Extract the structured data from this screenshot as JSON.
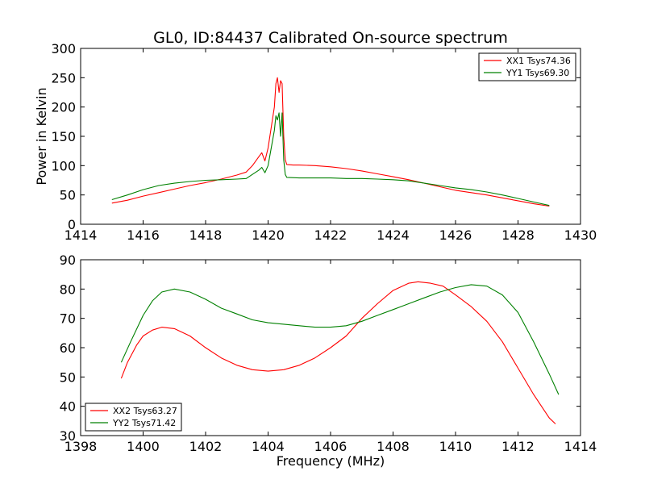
{
  "chart_data": [
    {
      "type": "line",
      "title": "GL0, ID:84437 Calibrated On-source spectrum",
      "xlabel": "",
      "ylabel": "Power in Kelvin",
      "xlim": [
        1414,
        1430
      ],
      "ylim": [
        0,
        300
      ],
      "xticks": [
        "1414",
        "1416",
        "1418",
        "1420",
        "1422",
        "1424",
        "1426",
        "1428",
        "1430"
      ],
      "yticks": [
        "0",
        "50",
        "100",
        "150",
        "200",
        "250",
        "300"
      ],
      "grid": false,
      "legend_position": "top-right",
      "series": [
        {
          "name": "XX1 Tsys74.36",
          "color": "#ff0000",
          "points": [
            [
              1415.0,
              36
            ],
            [
              1415.5,
              41
            ],
            [
              1416.0,
              48
            ],
            [
              1416.5,
              54
            ],
            [
              1417.0,
              60
            ],
            [
              1417.5,
              66
            ],
            [
              1418.0,
              71
            ],
            [
              1418.5,
              77
            ],
            [
              1419.0,
              84
            ],
            [
              1419.3,
              89
            ],
            [
              1419.5,
              100
            ],
            [
              1419.7,
              115
            ],
            [
              1419.8,
              122
            ],
            [
              1419.9,
              108
            ],
            [
              1420.0,
              130
            ],
            [
              1420.1,
              165
            ],
            [
              1420.2,
              200
            ],
            [
              1420.25,
              240
            ],
            [
              1420.3,
              250
            ],
            [
              1420.35,
              225
            ],
            [
              1420.4,
              245
            ],
            [
              1420.45,
              240
            ],
            [
              1420.5,
              150
            ],
            [
              1420.55,
              110
            ],
            [
              1420.6,
              102
            ],
            [
              1420.8,
              101
            ],
            [
              1421.0,
              101
            ],
            [
              1421.5,
              100
            ],
            [
              1422.0,
              98
            ],
            [
              1422.5,
              95
            ],
            [
              1423.0,
              91
            ],
            [
              1423.5,
              86
            ],
            [
              1424.0,
              81
            ],
            [
              1424.5,
              76
            ],
            [
              1425.0,
              70
            ],
            [
              1425.5,
              64
            ],
            [
              1426.0,
              58
            ],
            [
              1426.5,
              54
            ],
            [
              1427.0,
              50
            ],
            [
              1427.5,
              45
            ],
            [
              1428.0,
              40
            ],
            [
              1428.5,
              35
            ],
            [
              1429.0,
              31
            ]
          ]
        },
        {
          "name": "YY1 Tsys69.30",
          "color": "#008000",
          "points": [
            [
              1415.0,
              42
            ],
            [
              1415.5,
              50
            ],
            [
              1416.0,
              59
            ],
            [
              1416.5,
              66
            ],
            [
              1417.0,
              70
            ],
            [
              1417.5,
              73
            ],
            [
              1418.0,
              75
            ],
            [
              1418.5,
              76
            ],
            [
              1419.0,
              77
            ],
            [
              1419.3,
              78
            ],
            [
              1419.5,
              85
            ],
            [
              1419.7,
              92
            ],
            [
              1419.8,
              97
            ],
            [
              1419.9,
              88
            ],
            [
              1420.0,
              100
            ],
            [
              1420.1,
              130
            ],
            [
              1420.2,
              160
            ],
            [
              1420.25,
              185
            ],
            [
              1420.3,
              178
            ],
            [
              1420.35,
              190
            ],
            [
              1420.4,
              150
            ],
            [
              1420.45,
              190
            ],
            [
              1420.5,
              110
            ],
            [
              1420.55,
              85
            ],
            [
              1420.6,
              80
            ],
            [
              1421.0,
              79
            ],
            [
              1421.5,
              79
            ],
            [
              1422.0,
              79
            ],
            [
              1422.5,
              78
            ],
            [
              1423.0,
              78
            ],
            [
              1423.5,
              77
            ],
            [
              1424.0,
              76
            ],
            [
              1424.5,
              74
            ],
            [
              1425.0,
              70
            ],
            [
              1425.5,
              66
            ],
            [
              1426.0,
              62
            ],
            [
              1426.5,
              59
            ],
            [
              1427.0,
              55
            ],
            [
              1427.5,
              50
            ],
            [
              1428.0,
              44
            ],
            [
              1428.5,
              38
            ],
            [
              1429.0,
              32
            ]
          ]
        }
      ]
    },
    {
      "type": "line",
      "title": "",
      "xlabel": "Frequency (MHz)",
      "ylabel": "",
      "xlim": [
        1398,
        1414
      ],
      "ylim": [
        30,
        90
      ],
      "xticks": [
        "1398",
        "1400",
        "1402",
        "1404",
        "1406",
        "1408",
        "1410",
        "1412",
        "1414"
      ],
      "yticks": [
        "30",
        "40",
        "50",
        "60",
        "70",
        "80",
        "90"
      ],
      "grid": false,
      "legend_position": "bottom-left",
      "series": [
        {
          "name": "XX2 Tsys63.27",
          "color": "#ff0000",
          "points": [
            [
              1399.3,
              49.5
            ],
            [
              1399.5,
              55
            ],
            [
              1399.8,
              61
            ],
            [
              1400.0,
              64
            ],
            [
              1400.3,
              66
            ],
            [
              1400.6,
              67
            ],
            [
              1401.0,
              66.5
            ],
            [
              1401.5,
              64
            ],
            [
              1402.0,
              60
            ],
            [
              1402.5,
              56.5
            ],
            [
              1403.0,
              54
            ],
            [
              1403.5,
              52.5
            ],
            [
              1404.0,
              52
            ],
            [
              1404.5,
              52.5
            ],
            [
              1405.0,
              54
            ],
            [
              1405.5,
              56.5
            ],
            [
              1406.0,
              60
            ],
            [
              1406.5,
              64
            ],
            [
              1407.0,
              70
            ],
            [
              1407.5,
              75
            ],
            [
              1408.0,
              79.5
            ],
            [
              1408.5,
              82
            ],
            [
              1408.8,
              82.5
            ],
            [
              1409.2,
              82
            ],
            [
              1409.6,
              81
            ],
            [
              1410.0,
              78
            ],
            [
              1410.5,
              74
            ],
            [
              1411.0,
              69
            ],
            [
              1411.5,
              62
            ],
            [
              1412.0,
              53
            ],
            [
              1412.5,
              44
            ],
            [
              1413.0,
              36
            ],
            [
              1413.2,
              34
            ]
          ]
        },
        {
          "name": "YY2 Tsys71.42",
          "color": "#008000",
          "points": [
            [
              1399.3,
              55
            ],
            [
              1399.6,
              62
            ],
            [
              1400.0,
              71
            ],
            [
              1400.3,
              76
            ],
            [
              1400.6,
              79
            ],
            [
              1401.0,
              80
            ],
            [
              1401.5,
              79
            ],
            [
              1402.0,
              76.5
            ],
            [
              1402.5,
              73.5
            ],
            [
              1403.0,
              71.5
            ],
            [
              1403.5,
              69.5
            ],
            [
              1404.0,
              68.5
            ],
            [
              1404.5,
              68
            ],
            [
              1405.0,
              67.5
            ],
            [
              1405.5,
              67
            ],
            [
              1406.0,
              67
            ],
            [
              1406.5,
              67.5
            ],
            [
              1407.0,
              69
            ],
            [
              1407.5,
              71
            ],
            [
              1408.0,
              73
            ],
            [
              1408.5,
              75
            ],
            [
              1409.0,
              77
            ],
            [
              1409.5,
              79
            ],
            [
              1410.0,
              80.5
            ],
            [
              1410.5,
              81.5
            ],
            [
              1411.0,
              81
            ],
            [
              1411.5,
              78
            ],
            [
              1412.0,
              72
            ],
            [
              1412.5,
              62
            ],
            [
              1413.0,
              51
            ],
            [
              1413.3,
              44
            ]
          ]
        }
      ]
    }
  ]
}
